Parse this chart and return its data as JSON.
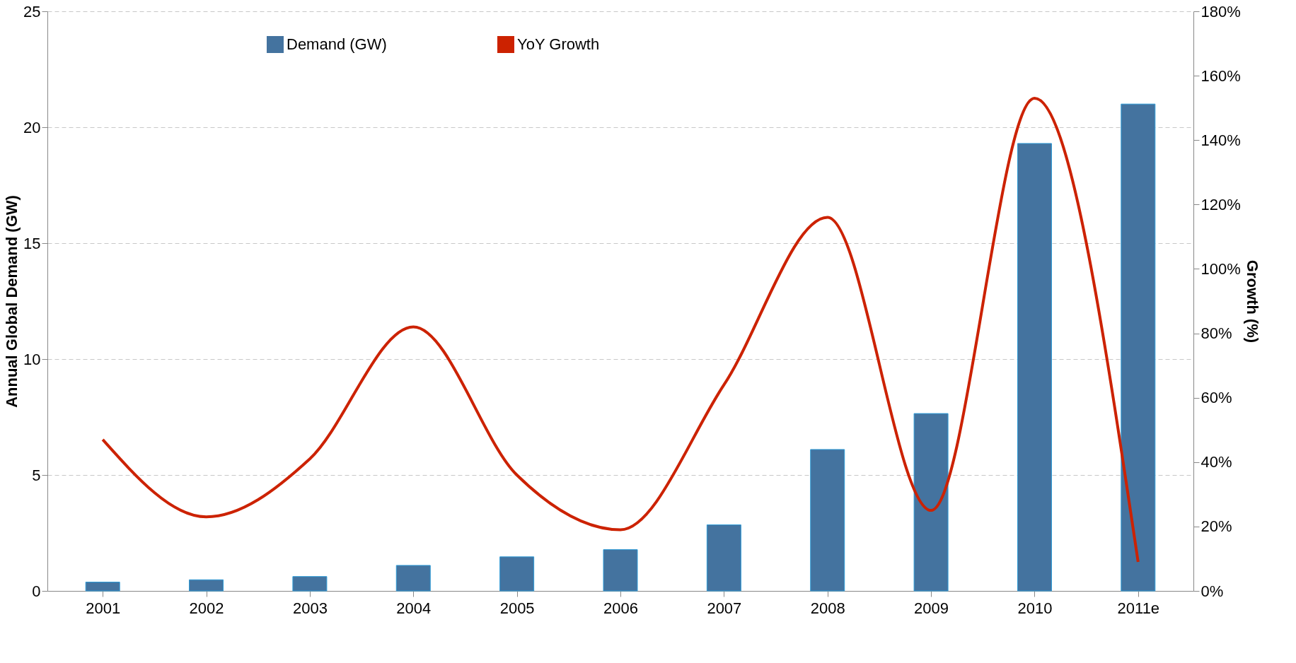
{
  "chart_data": {
    "type": "bar",
    "categories": [
      "2001",
      "2002",
      "2003",
      "2004",
      "2005",
      "2006",
      "2007",
      "2008",
      "2009",
      "2010",
      "2011e"
    ],
    "series": [
      {
        "name": "Demand (GW)",
        "color": "#44739f",
        "values": [
          0.38,
          0.48,
          0.62,
          1.1,
          1.47,
          1.78,
          2.85,
          6.1,
          7.65,
          19.3,
          21.0
        ]
      },
      {
        "name": "YoY Growth",
        "type": "line",
        "axis": "y2",
        "color": "#cc2200",
        "values": [
          47,
          23,
          41,
          82,
          36,
          19,
          64,
          116,
          25,
          153,
          9
        ]
      }
    ],
    "ylabel": "Annual Global Demand (GW)",
    "y2label": "Growth (%)",
    "ylim": [
      0,
      25
    ],
    "yticks": [
      0,
      5,
      10,
      15,
      20,
      25
    ],
    "y2lim": [
      0,
      180
    ],
    "y2ticks": [
      {
        "value": 0,
        "label": "0%"
      },
      {
        "value": 20,
        "label": "20%"
      },
      {
        "value": 40,
        "label": "40%"
      },
      {
        "value": 60,
        "label": "60%"
      },
      {
        "value": 80,
        "label": "80%"
      },
      {
        "value": 100,
        "label": "100%"
      },
      {
        "value": 120,
        "label": "120%"
      },
      {
        "value": 140,
        "label": "140%"
      },
      {
        "value": 160,
        "label": "160%"
      },
      {
        "value": 180,
        "label": "180%"
      }
    ],
    "grid": "y",
    "legend": "top",
    "line_style": "solid",
    "marker": "none"
  }
}
